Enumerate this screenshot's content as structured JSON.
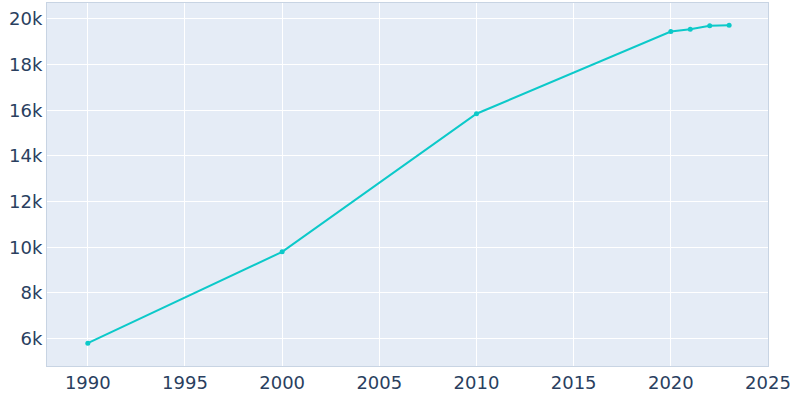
{
  "chart_data": {
    "type": "line",
    "x": [
      1990,
      2000,
      2010,
      2020,
      2021,
      2022,
      2023
    ],
    "values": [
      5800,
      9800,
      15850,
      19450,
      19550,
      19700,
      19730
    ],
    "color": "#0cc9c9",
    "marker": "circle",
    "xlim": [
      1987.9,
      2025
    ],
    "xticks": [
      1990,
      1995,
      2000,
      2005,
      2010,
      2015,
      2020,
      2025
    ],
    "ylim": [
      4800,
      20700
    ],
    "yticks": [
      {
        "value": 6000,
        "label": "6k"
      },
      {
        "value": 8000,
        "label": "8k"
      },
      {
        "value": 10000,
        "label": "10k"
      },
      {
        "value": 12000,
        "label": "12k"
      },
      {
        "value": 14000,
        "label": "14k"
      },
      {
        "value": 16000,
        "label": "16k"
      },
      {
        "value": 18000,
        "label": "18k"
      },
      {
        "value": 20000,
        "label": "20k"
      }
    ],
    "grid": true
  }
}
